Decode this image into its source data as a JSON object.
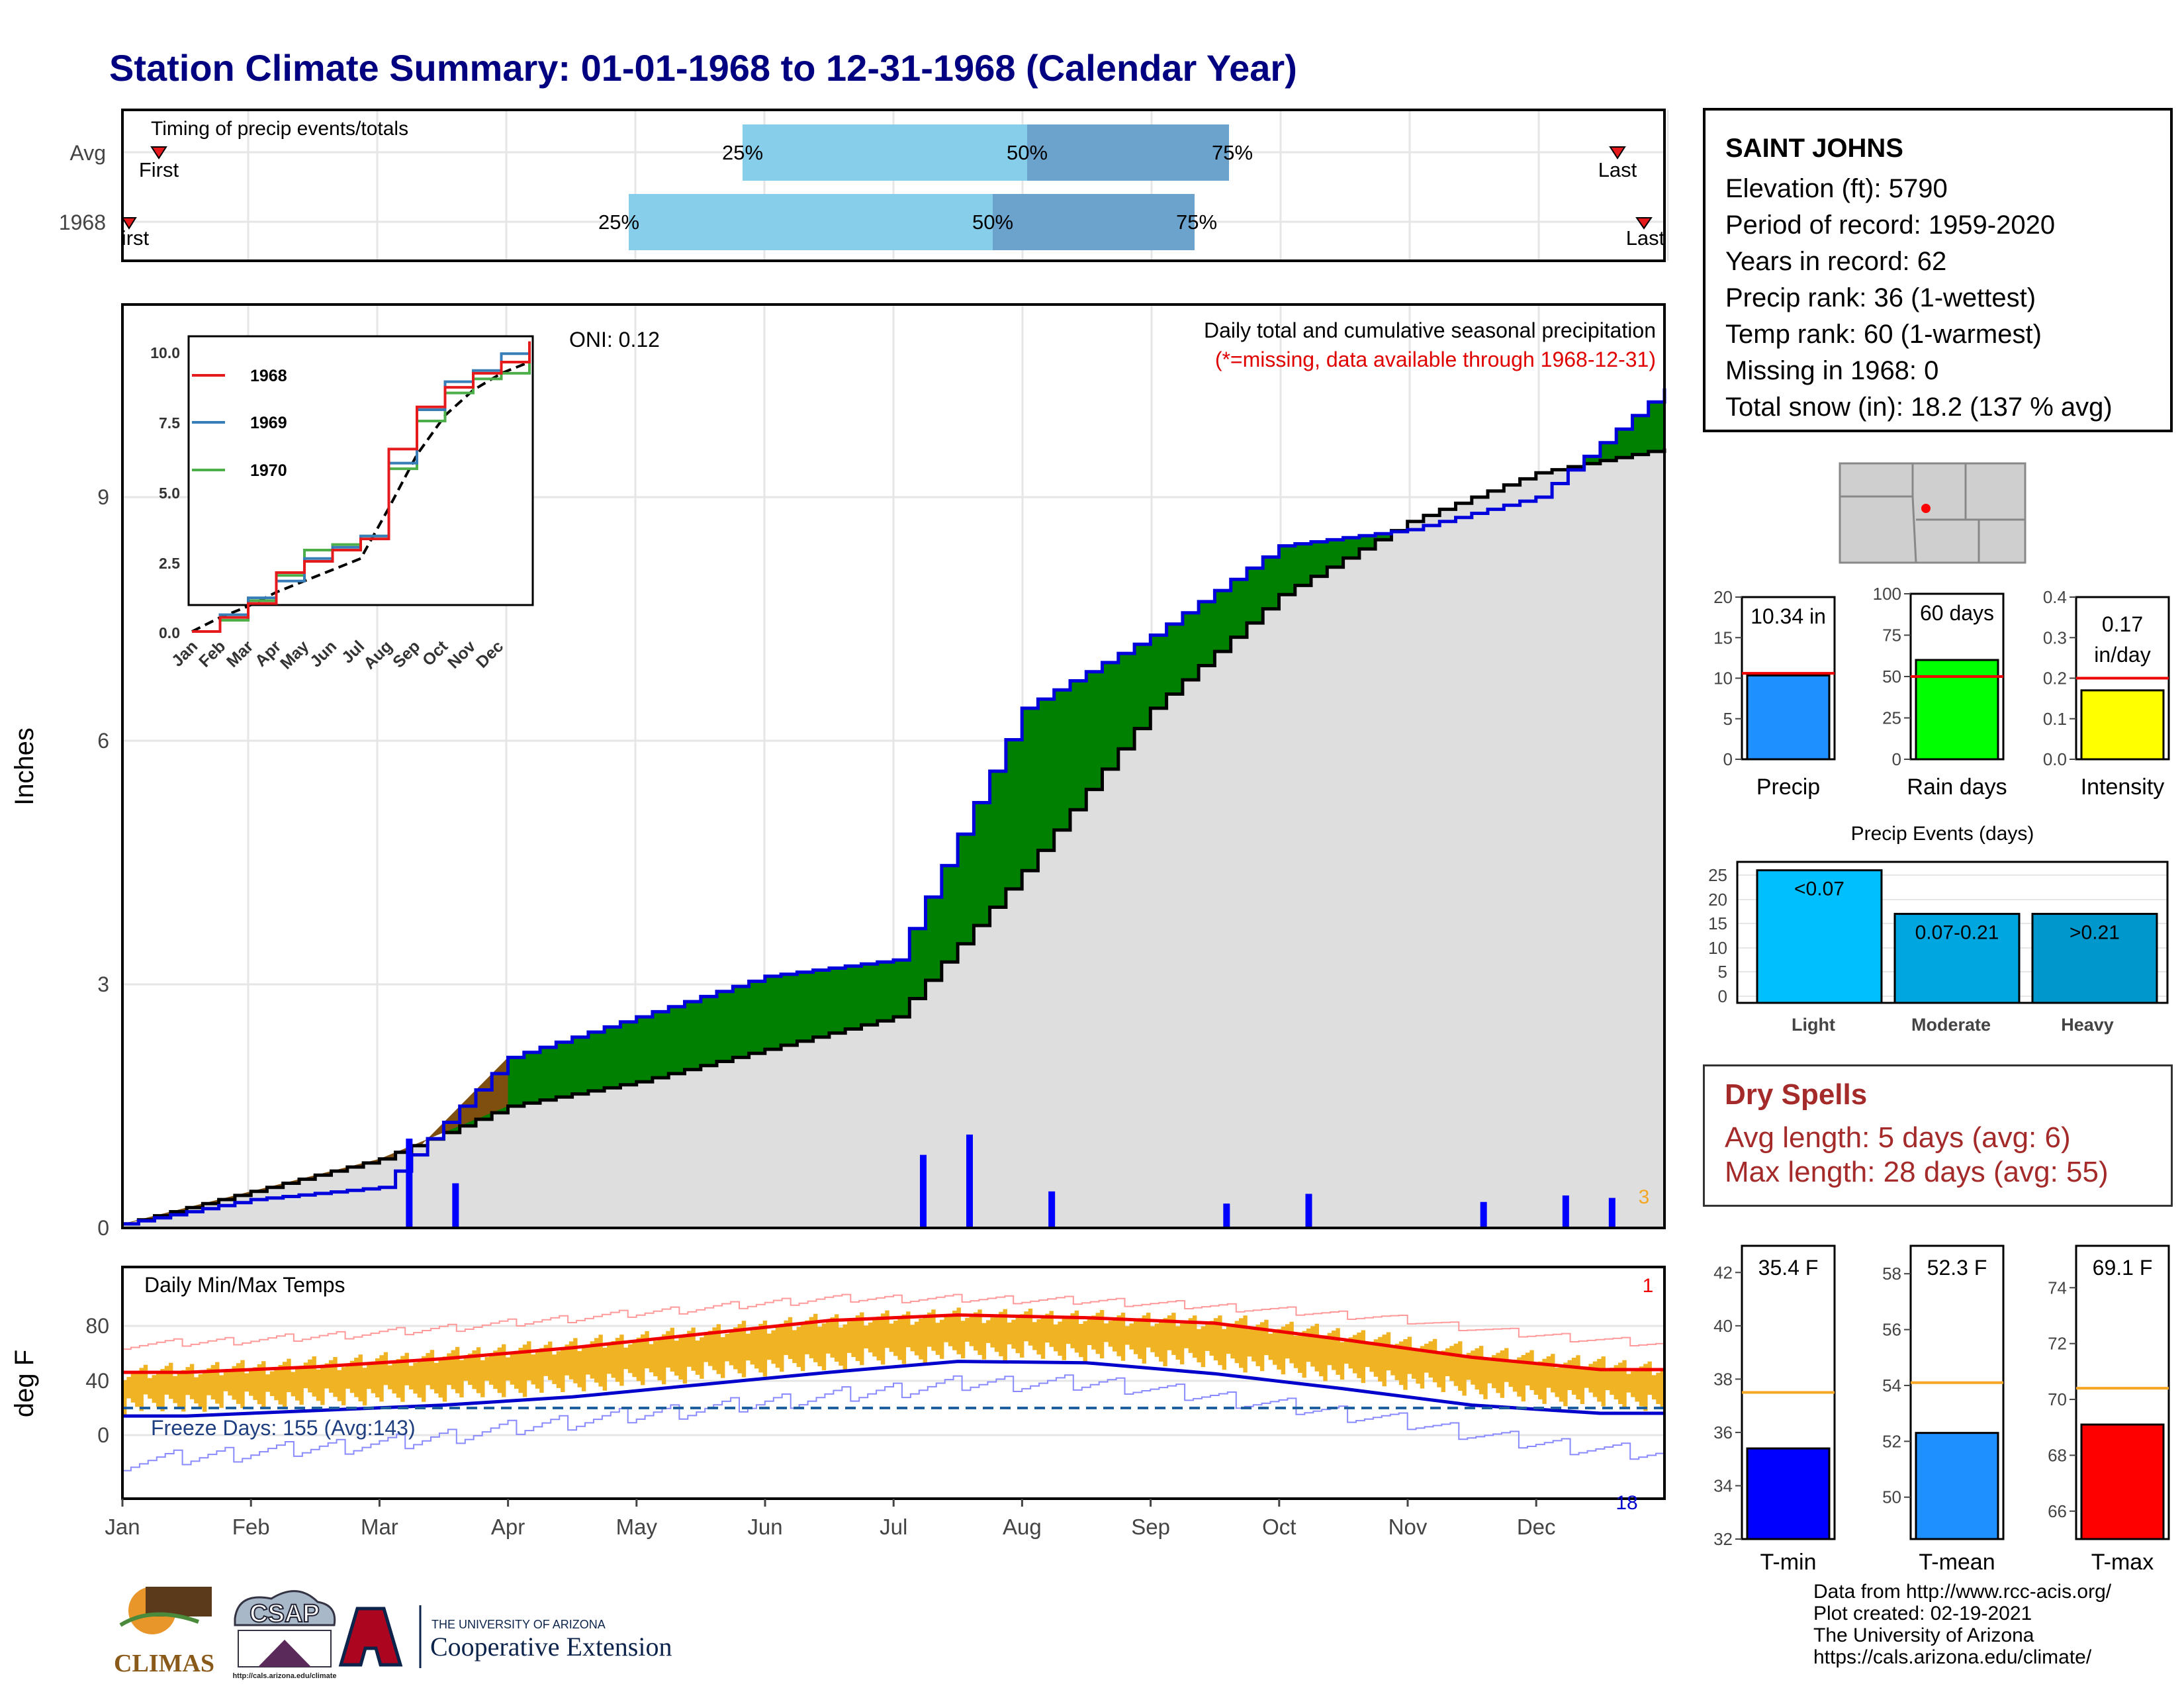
{
  "title": "Station Climate Summary: 01-01-1968 to 12-31-1968 (Calendar Year)",
  "timing": {
    "label": "Timing of precip events/totals",
    "rows": [
      {
        "name": "Avg",
        "first": "First",
        "last": "Last",
        "p25": "25%",
        "p50": "50%",
        "p75": "75%"
      },
      {
        "name": "1968",
        "first": "First",
        "last": "Last",
        "p25": "25%",
        "p50": "50%",
        "p75": "75%"
      }
    ]
  },
  "station": {
    "name": "SAINT JOHNS",
    "lines": [
      "Elevation (ft): 5790",
      "Period of record: 1959-2020",
      "Years in record: 62",
      "Precip rank: 36 (1-wettest)",
      "Temp rank: 60 (1-warmest)",
      "Missing in 1968: 0",
      "Total snow (in): 18.2 (137 % avg)"
    ]
  },
  "precip_main": {
    "oni": "ONI: 0.12",
    "heading": "Daily total and cumulative seasonal precipitation",
    "note": "(*=missing, data available through 1968-12-31)",
    "ylabel": "Inches",
    "yticks": [
      "0",
      "3",
      "6",
      "9"
    ],
    "count_label": "3"
  },
  "inset": {
    "yticks": [
      "0.0",
      "2.5",
      "5.0",
      "7.5",
      "10.0"
    ],
    "xticks": [
      "Jan",
      "Feb",
      "Mar",
      "Apr",
      "May",
      "Jun",
      "Jul",
      "Aug",
      "Sep",
      "Oct",
      "Nov",
      "Dec"
    ],
    "legend": [
      {
        "label": "1968",
        "color": "#e41a1c"
      },
      {
        "label": "1969",
        "color": "#377eb8"
      },
      {
        "label": "1970",
        "color": "#4daf4a"
      }
    ]
  },
  "temps": {
    "label": "Daily Min/Max Temps",
    "freeze": "Freeze Days: 155 (Avg:143)",
    "ylabel": "deg F",
    "yticks": [
      "0",
      "40",
      "80"
    ],
    "max_count": "1",
    "min_count": "18"
  },
  "months": [
    "Jan",
    "Feb",
    "Mar",
    "Apr",
    "May",
    "Jun",
    "Jul",
    "Aug",
    "Sep",
    "Oct",
    "Nov",
    "Dec"
  ],
  "small_bars": [
    {
      "value_label": "10.34 in",
      "category": "Precip",
      "yticks": [
        "0",
        "5",
        "10",
        "15",
        "20"
      ],
      "color": "#1e90ff"
    },
    {
      "value_label": "60 days",
      "category": "Rain days",
      "yticks": [
        "0",
        "25",
        "50",
        "75",
        "100"
      ],
      "color": "#00ff00"
    },
    {
      "value_label": "0.17",
      "value_label2": "in/day",
      "category": "Intensity",
      "yticks": [
        "0.0",
        "0.1",
        "0.2",
        "0.3",
        "0.4"
      ],
      "color": "#ffff00"
    }
  ],
  "events": {
    "title": "Precip Events (days)",
    "yticks": [
      "0",
      "5",
      "10",
      "15",
      "20",
      "25"
    ],
    "bars": [
      {
        "label": "<0.07",
        "category": "Light"
      },
      {
        "label": "0.07-0.21",
        "category": "Moderate"
      },
      {
        "label": ">0.21",
        "category": "Heavy"
      }
    ]
  },
  "dry_spells": {
    "title": "Dry Spells",
    "avg": "Avg length: 5 days (avg: 6)",
    "max": "Max length: 28 days (avg: 55)"
  },
  "temp_bars": [
    {
      "value_label": "35.4 F",
      "category": "T-min",
      "yticks": [
        "32",
        "34",
        "36",
        "38",
        "40",
        "42"
      ],
      "color": "#0000ff"
    },
    {
      "value_label": "52.3 F",
      "category": "T-mean",
      "yticks": [
        "50",
        "52",
        "54",
        "56",
        "58"
      ],
      "color": "#1e90ff"
    },
    {
      "value_label": "69.1 F",
      "category": "T-max",
      "yticks": [
        "66",
        "68",
        "70",
        "72",
        "74"
      ],
      "color": "#ff0000"
    }
  ],
  "credits": [
    "Data from http://www.rcc-acis.org/",
    "Plot created: 02-19-2021",
    "The University of Arizona",
    "https://cals.arizona.edu/climate/"
  ],
  "logos": {
    "climas": "CLIMAS",
    "csap": "CSAP",
    "csap_url": "http://cals.arizona.edu/climate",
    "ua_small": "THE UNIVERSITY OF ARIZONA",
    "ua_big": "Cooperative Extension"
  },
  "chart_data": [
    {
      "type": "area",
      "title": "Daily total and cumulative seasonal precipitation",
      "ylabel": "Inches",
      "ylim": [
        0,
        10.8
      ],
      "x": [
        "Jan",
        "Feb",
        "Mar",
        "Apr",
        "May",
        "Jun",
        "Jul",
        "Aug",
        "Sep",
        "Oct",
        "Nov",
        "Dec",
        "Dec-31"
      ],
      "series": [
        {
          "name": "1968",
          "values": [
            0.05,
            0.35,
            0.5,
            2.1,
            2.6,
            3.1,
            3.3,
            6.4,
            7.3,
            8.4,
            8.6,
            9.0,
            10.34
          ]
        },
        {
          "name": "",
          "values": [
            0.05,
            0.45,
            0.85,
            1.5,
            1.8,
            2.2,
            2.6,
            4.4,
            6.4,
            7.8,
            8.7,
            9.3,
            9.6
          ]
        }
      ],
      "daily_precip": [
        {
          "month": "Mar",
          "value": 1.1
        },
        {
          "month": "Mar",
          "value": 0.55
        },
        {
          "month": "Jul",
          "value": 0.9
        },
        {
          "month": "Jul",
          "value": 1.15
        },
        {
          "month": "Aug",
          "value": 0.45
        },
        {
          "month": "Sep",
          "value": 0.3
        },
        {
          "month": "Oct",
          "value": 0.42
        },
        {
          "month": "Nov",
          "value": 0.32
        },
        {
          "month": "Dec",
          "value": 0.4
        },
        {
          "month": "Dec",
          "value": 0.37
        }
      ]
    },
    {
      "type": "line",
      "title": "",
      "ylim": [
        0,
        10.8
      ],
      "x": [
        "Jan",
        "Feb",
        "Mar",
        "Apr",
        "May",
        "Jun",
        "Jul",
        "Aug",
        "Sep",
        "Oct",
        "Nov",
        "Dec",
        "Dec-31"
      ],
      "series": [
        {
          "name": "1968",
          "values": [
            0.0,
            0.5,
            1.0,
            2.1,
            2.5,
            2.9,
            3.3,
            6.5,
            8.0,
            8.7,
            9.2,
            9.6,
            10.34
          ]
        },
        {
          "name": "1969",
          "values": [
            0.0,
            0.6,
            1.2,
            1.8,
            2.6,
            3.0,
            3.4,
            6.0,
            7.9,
            8.9,
            9.3,
            9.9,
            10.0
          ]
        },
        {
          "name": "1970",
          "values": [
            0.0,
            0.4,
            1.1,
            2.0,
            2.9,
            3.1,
            3.4,
            5.8,
            7.5,
            8.5,
            9.0,
            9.2,
            9.8
          ]
        },
        {
          "name": "",
          "values": [
            0.0,
            0.5,
            0.9,
            1.4,
            1.8,
            2.2,
            2.6,
            4.4,
            6.3,
            7.7,
            8.6,
            9.2,
            9.6
          ]
        }
      ]
    },
    {
      "type": "line",
      "title": "Daily Min/Max Temps",
      "ylabel": "deg F",
      "ylim": [
        -25,
        105
      ],
      "x": [
        "Jan",
        "Feb",
        "Mar",
        "Apr",
        "May",
        "Jun",
        "Jul",
        "Aug",
        "Sep",
        "Oct",
        "Nov",
        "Dec"
      ],
      "series": [
        {
          "name": "avg max",
          "values": [
            46,
            50,
            56,
            64,
            74,
            84,
            88,
            86,
            82,
            70,
            57,
            48
          ]
        },
        {
          "name": "avg min",
          "values": [
            14,
            18,
            22,
            28,
            37,
            46,
            54,
            53,
            45,
            34,
            22,
            16
          ]
        },
        {
          "name": "record max",
          "values": [
            66,
            70,
            76,
            84,
            92,
            100,
            100,
            98,
            93,
            86,
            74,
            66
          ]
        },
        {
          "name": "record min",
          "values": [
            -20,
            -12,
            -5,
            8,
            18,
            28,
            38,
            38,
            25,
            12,
            -5,
            -15
          ]
        }
      ]
    },
    {
      "type": "bar",
      "categories": [
        "Precip"
      ],
      "values": [
        10.34
      ],
      "ylim": [
        0,
        20
      ],
      "reference": 10.6
    },
    {
      "type": "bar",
      "categories": [
        "Rain days"
      ],
      "values": [
        60
      ],
      "ylim": [
        0,
        100
      ],
      "reference": 50
    },
    {
      "type": "bar",
      "categories": [
        "Intensity"
      ],
      "values": [
        0.17
      ],
      "ylim": [
        0,
        0.4
      ],
      "reference": 0.2
    },
    {
      "type": "bar",
      "title": "Precip Events (days)",
      "categories": [
        "Light",
        "Moderate",
        "Heavy"
      ],
      "values": [
        26,
        17,
        17
      ],
      "ylim": [
        0,
        26
      ]
    },
    {
      "type": "bar",
      "categories": [
        "T-min"
      ],
      "values": [
        35.4
      ],
      "ylim": [
        32,
        43
      ],
      "reference": 37.5
    },
    {
      "type": "bar",
      "categories": [
        "T-mean"
      ],
      "values": [
        52.3
      ],
      "ylim": [
        48.5,
        59
      ],
      "reference": 54.1
    },
    {
      "type": "bar",
      "categories": [
        "T-max"
      ],
      "values": [
        69.1
      ],
      "ylim": [
        65,
        75.5
      ],
      "reference": 70.4
    }
  ]
}
